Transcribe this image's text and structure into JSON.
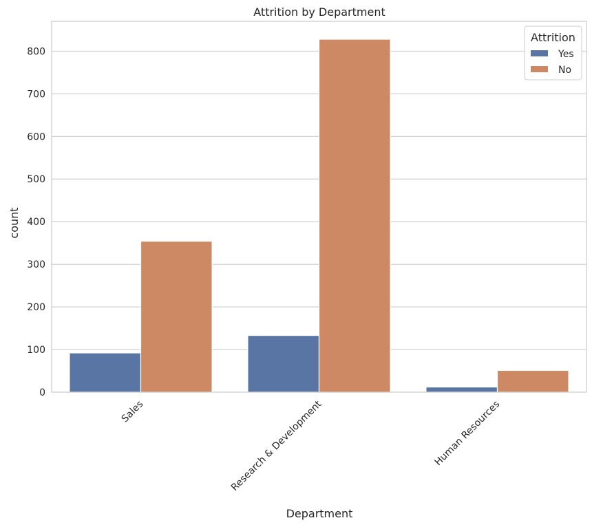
{
  "chart_data": {
    "type": "bar",
    "title": "Attrition by Department",
    "xlabel": "Department",
    "ylabel": "count",
    "categories": [
      "Sales",
      "Research & Development",
      "Human Resources"
    ],
    "series": [
      {
        "name": "Yes",
        "values": [
          92,
          133,
          12
        ],
        "color": "#5875a4"
      },
      {
        "name": "No",
        "values": [
          354,
          828,
          51
        ],
        "color": "#cc8963"
      }
    ],
    "ylim": [
      0,
      870
    ],
    "yticks": [
      0,
      100,
      200,
      300,
      400,
      500,
      600,
      700,
      800
    ],
    "grid": "horizontal",
    "legend": {
      "title": "Attrition",
      "placement": "top-right"
    }
  }
}
